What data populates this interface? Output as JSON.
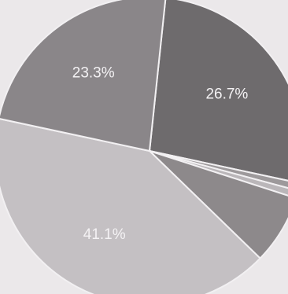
{
  "chart_data": {
    "type": "pie",
    "title": "",
    "slices": [
      {
        "value": 26.7,
        "label": "26.7%",
        "color": "#6e6b6d"
      },
      {
        "value": 0.8,
        "label": "",
        "color": "#9d999b"
      },
      {
        "value": 0.8,
        "label": "",
        "color": "#bab6b9"
      },
      {
        "value": 7.3,
        "label": "",
        "color": "#8d898b"
      },
      {
        "value": 41.1,
        "label": "41.1%",
        "color": "#c4c0c3"
      },
      {
        "value": 23.3,
        "label": "23.3%",
        "color": "#8a8689"
      }
    ],
    "start_angle_deg": 6,
    "direction": "clockwise"
  }
}
